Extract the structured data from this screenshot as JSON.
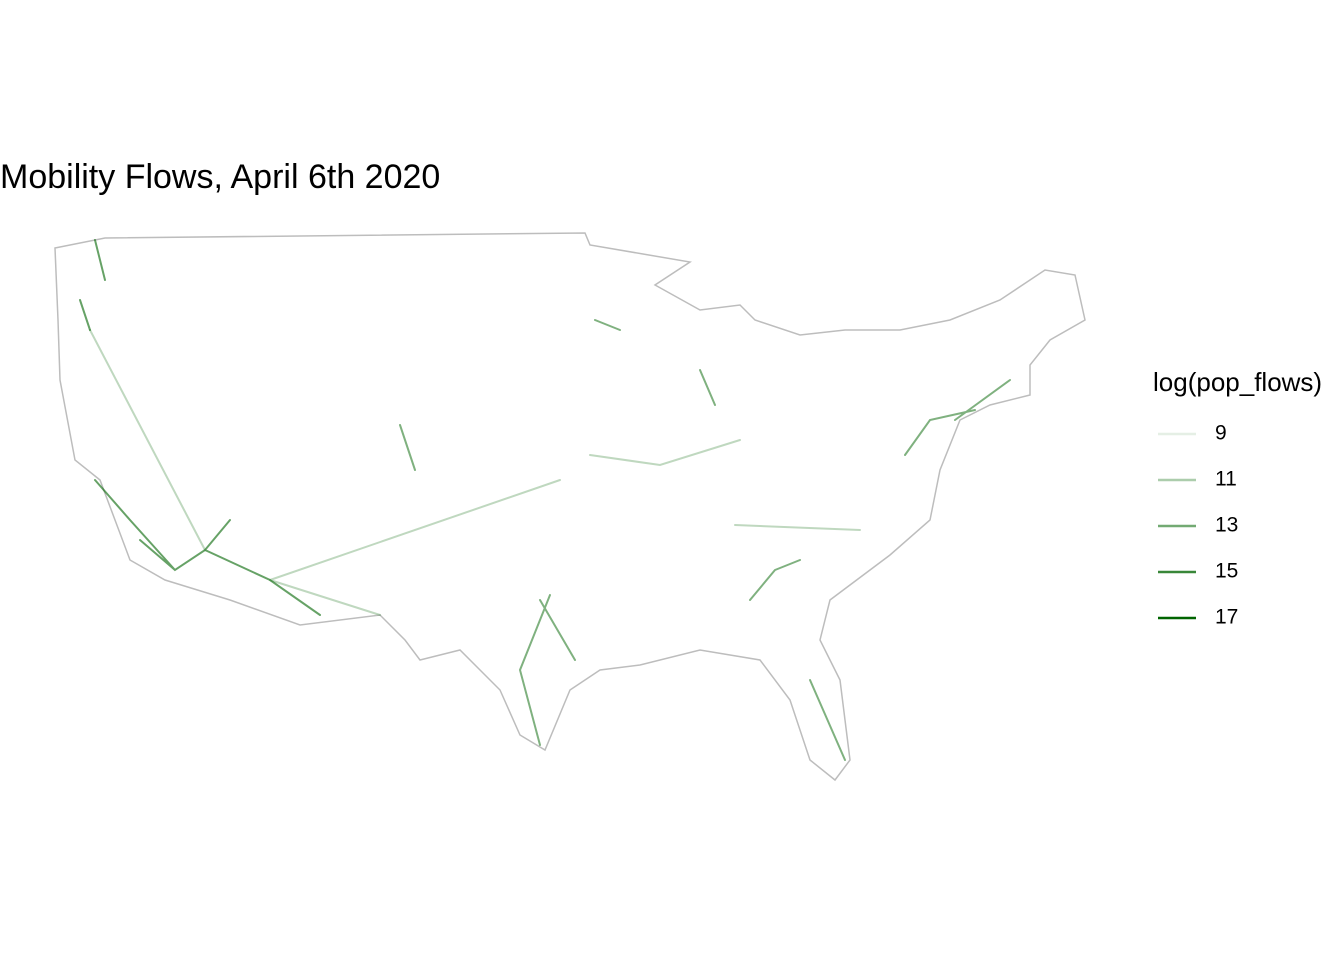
{
  "title": "Mobility Flows, April 6th 2020",
  "legend": {
    "title": "log(pop_flows)",
    "values": [
      9,
      11,
      13,
      15,
      17
    ],
    "color": "#006400"
  }
}
